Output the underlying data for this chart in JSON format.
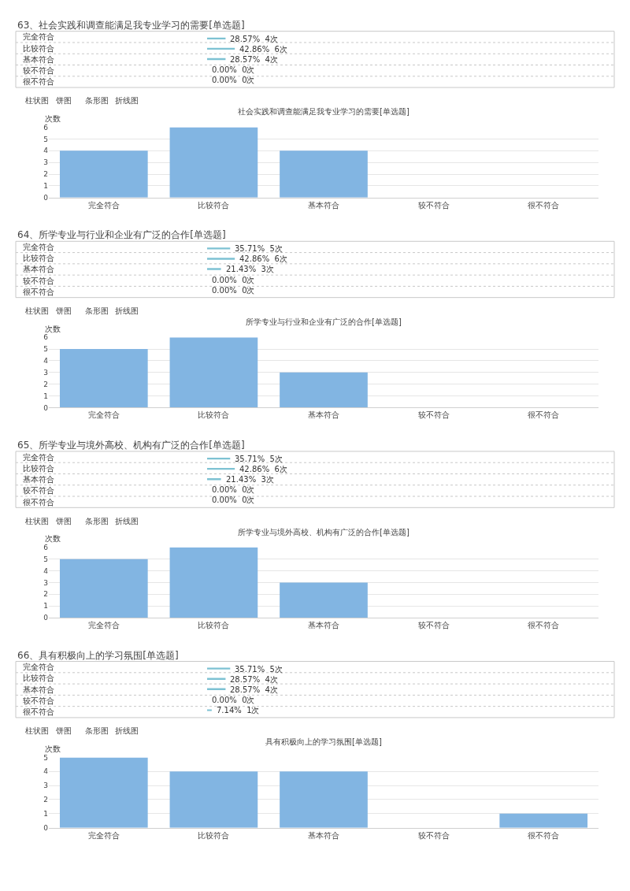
{
  "chart_data": [
    {
      "type": "bar",
      "orientation": "horizontal",
      "title": "63、社会实践和调查能满足我专业学习的需要[单选题]",
      "categories": [
        "完全符合",
        "比较符合",
        "基本符合",
        "较不符合",
        "很不符合"
      ],
      "values": [
        28.57,
        42.86,
        28.57,
        0,
        0
      ],
      "value_labels": [
        "28.57%  4次",
        "42.86%  6次",
        "28.57%  4次",
        "0.00%  0次",
        "0.00%  0次"
      ],
      "color": "#7ec2d3"
    },
    {
      "type": "bar",
      "title": "社会实践和调查能满足我专业学习的需要[单选题]",
      "ylabel": "次数",
      "categories": [
        "完全符合",
        "比较符合",
        "基本符合",
        "较不符合",
        "很不符合"
      ],
      "values": [
        4,
        6,
        4,
        0,
        0
      ],
      "color": "#82b5e2",
      "ylim": [
        0,
        6
      ],
      "yticks": [
        0,
        1,
        2,
        3,
        4,
        5,
        6
      ],
      "grid": "y",
      "annotations": [
        "柱状图",
        "饼图",
        "条形图",
        "折线图"
      ]
    },
    {
      "type": "bar",
      "orientation": "horizontal",
      "title": "64、所学专业与行业和企业有广泛的合作[单选题]",
      "categories": [
        "完全符合",
        "比较符合",
        "基本符合",
        "较不符合",
        "很不符合"
      ],
      "values": [
        35.71,
        42.86,
        21.43,
        0,
        0
      ],
      "value_labels": [
        "35.71%  5次",
        "42.86%  6次",
        "21.43%  3次",
        "0.00%  0次",
        "0.00%  0次"
      ],
      "color": "#7ec2d3"
    },
    {
      "type": "bar",
      "title": "所学专业与行业和企业有广泛的合作[单选题]",
      "ylabel": "次数",
      "categories": [
        "完全符合",
        "比较符合",
        "基本符合",
        "较不符合",
        "很不符合"
      ],
      "values": [
        5,
        6,
        3,
        0,
        0
      ],
      "color": "#82b5e2",
      "ylim": [
        0,
        6
      ],
      "yticks": [
        0,
        1,
        2,
        3,
        4,
        5,
        6
      ],
      "grid": "y",
      "annotations": [
        "柱状图",
        "饼图",
        "条形图",
        "折线图"
      ]
    },
    {
      "type": "bar",
      "orientation": "horizontal",
      "title": "65、所学专业与境外高校、机构有广泛的合作[单选题]",
      "categories": [
        "完全符合",
        "比较符合",
        "基本符合",
        "较不符合",
        "很不符合"
      ],
      "values": [
        35.71,
        42.86,
        21.43,
        0,
        0
      ],
      "value_labels": [
        "35.71%  5次",
        "42.86%  6次",
        "21.43%  3次",
        "0.00%  0次",
        "0.00%  0次"
      ],
      "color": "#7ec2d3"
    },
    {
      "type": "bar",
      "title": "所学专业与境外高校、机构有广泛的合作[单选题]",
      "ylabel": "次数",
      "categories": [
        "完全符合",
        "比较符合",
        "基本符合",
        "较不符合",
        "很不符合"
      ],
      "values": [
        5,
        6,
        3,
        0,
        0
      ],
      "color": "#82b5e2",
      "ylim": [
        0,
        6
      ],
      "yticks": [
        0,
        1,
        2,
        3,
        4,
        5,
        6
      ],
      "grid": "y",
      "annotations": [
        "柱状图",
        "饼图",
        "条形图",
        "折线图"
      ]
    },
    {
      "type": "bar",
      "orientation": "horizontal",
      "title": "66、具有积极向上的学习氛围[单选题]",
      "categories": [
        "完全符合",
        "比较符合",
        "基本符合",
        "较不符合",
        "很不符合"
      ],
      "values": [
        35.71,
        28.57,
        28.57,
        0,
        7.14
      ],
      "value_labels": [
        "35.71%  5次",
        "28.57%  4次",
        "28.57%  4次",
        "0.00%  0次",
        "7.14%  1次"
      ],
      "color": "#7ec2d3"
    },
    {
      "type": "bar",
      "title": "具有积极向上的学习氛围[单选题]",
      "ylabel": "次数",
      "categories": [
        "完全符合",
        "比较符合",
        "基本符合",
        "较不符合",
        "很不符合"
      ],
      "values": [
        5,
        4,
        4,
        0,
        1
      ],
      "color": "#82b5e2",
      "ylim": [
        0,
        5
      ],
      "yticks": [
        0,
        1,
        2,
        3,
        4,
        5
      ],
      "grid": "y",
      "annotations": [
        "柱状图",
        "饼图",
        "条形图",
        "折线图"
      ]
    }
  ]
}
